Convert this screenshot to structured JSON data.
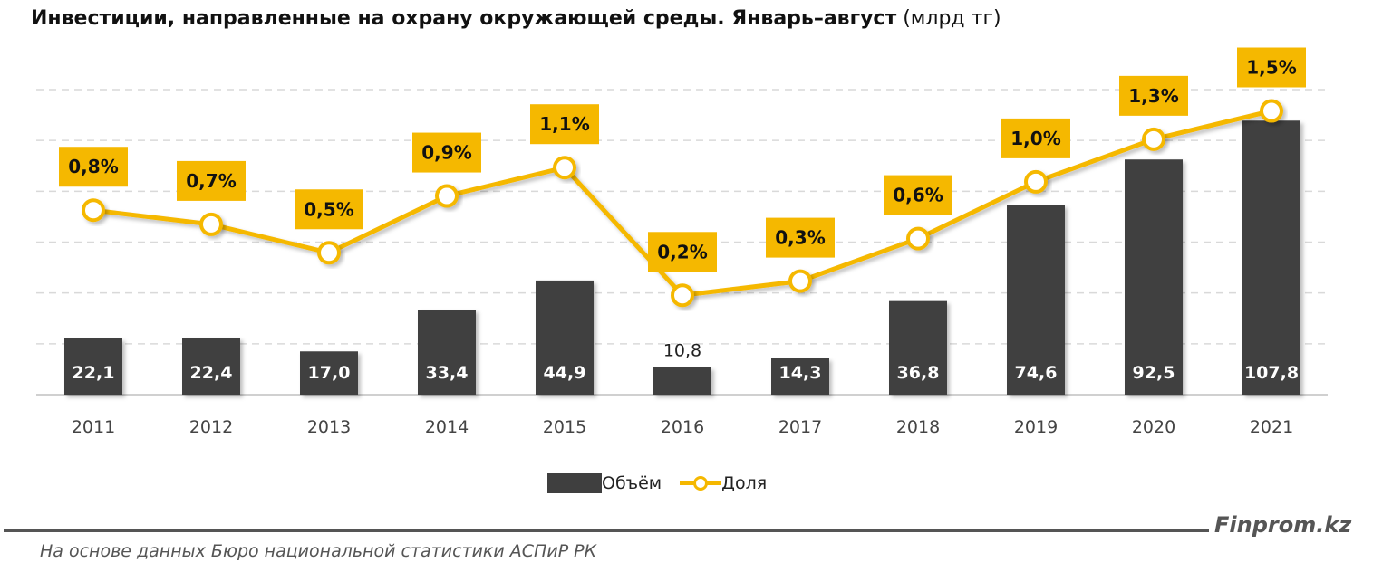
{
  "title": {
    "bold": "Инвестиции, направленные на охрану окружающей среды. Январь–август",
    "unit": "(млрд тг)"
  },
  "chart_data": {
    "type": "bar+line",
    "title": "Инвестиции, направленные на охрану окружающей среды. Январь–август (млрд тг)",
    "categories": [
      "2011",
      "2012",
      "2013",
      "2014",
      "2015",
      "2016",
      "2017",
      "2018",
      "2019",
      "2020",
      "2021"
    ],
    "series": [
      {
        "name": "Объём",
        "type": "bar",
        "values": [
          22.1,
          22.4,
          17.0,
          33.4,
          44.9,
          10.8,
          14.3,
          36.8,
          74.6,
          92.5,
          107.8
        ],
        "labels": [
          "22,1",
          "22,4",
          "17,0",
          "33,4",
          "44,9",
          "10,8",
          "14,3",
          "36,8",
          "74,6",
          "92,5",
          "107,8"
        ],
        "color": "#3f3f3f"
      },
      {
        "name": "Доля",
        "type": "line",
        "axis": "secondary",
        "values": [
          0.8,
          0.7,
          0.5,
          0.9,
          1.1,
          0.2,
          0.3,
          0.6,
          1.0,
          1.3,
          1.5
        ],
        "labels": [
          "0,8%",
          "0,7%",
          "0,5%",
          "0,9%",
          "1,1%",
          "0,2%",
          "0,3%",
          "0,6%",
          "1,0%",
          "1,3%",
          "1,5%"
        ],
        "color": "#f5b800"
      }
    ],
    "ylim": [
      0,
      120
    ],
    "y_gridlines": [
      20,
      40,
      60,
      80,
      100,
      120
    ],
    "y_axis_labels_visible": false,
    "grid": true,
    "legend": "bottom"
  },
  "legend": {
    "bar": "Объём",
    "line": "Доля"
  },
  "footer": {
    "brand": "Finprom.kz",
    "source": "На основе данных Бюро национальной статистики АСПиР РК"
  }
}
